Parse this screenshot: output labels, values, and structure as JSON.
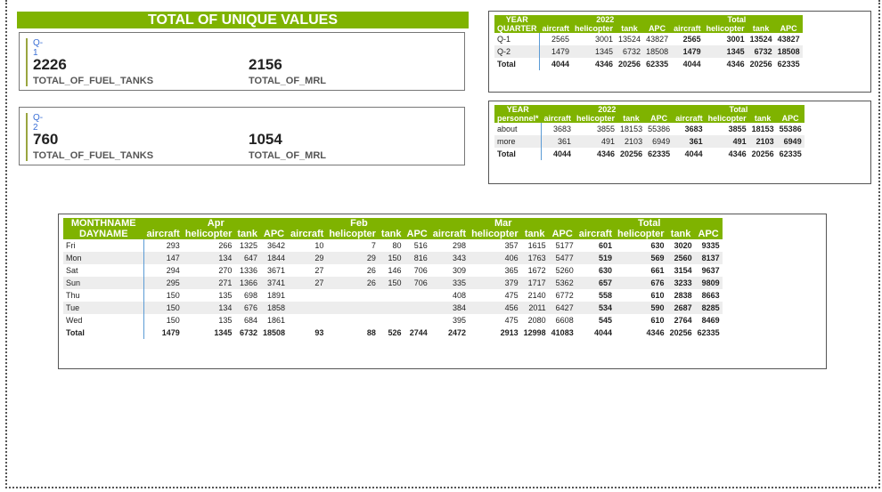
{
  "title": "TOTAL OF UNIQUE VALUES",
  "cards": [
    {
      "quarter": "Q-1",
      "fuel_value": "2226",
      "fuel_label": "TOTAL_OF_FUEL_TANKS",
      "mrl_value": "2156",
      "mrl_label": "TOTAL_OF_MRL"
    },
    {
      "quarter": "Q-2",
      "fuel_value": "760",
      "fuel_label": "TOTAL_OF_FUEL_TANKS",
      "mrl_value": "1054",
      "mrl_label": "TOTAL_OF_MRL"
    }
  ],
  "quarter_matrix": {
    "h_year": "YEAR",
    "h_2022": "2022",
    "h_total": "Total",
    "h_row": "QUARTER",
    "cols": [
      "aircraft",
      "helicopter",
      "tank",
      "APC",
      "aircraft",
      "helicopter",
      "tank",
      "APC"
    ],
    "rows": [
      {
        "label": "Q-1",
        "v": [
          "2565",
          "3001",
          "13524",
          "43827",
          "2565",
          "3001",
          "13524",
          "43827"
        ]
      },
      {
        "label": "Q-2",
        "v": [
          "1479",
          "1345",
          "6732",
          "18508",
          "1479",
          "1345",
          "6732",
          "18508"
        ]
      },
      {
        "label": "Total",
        "v": [
          "4044",
          "4346",
          "20256",
          "62335",
          "4044",
          "4346",
          "20256",
          "62335"
        ]
      }
    ]
  },
  "personnel_matrix": {
    "h_year": "YEAR",
    "h_2022": "2022",
    "h_total": "Total",
    "h_row": "personnel*",
    "cols": [
      "aircraft",
      "helicopter",
      "tank",
      "APC",
      "aircraft",
      "helicopter",
      "tank",
      "APC"
    ],
    "rows": [
      {
        "label": "about",
        "v": [
          "3683",
          "3855",
          "18153",
          "55386",
          "3683",
          "3855",
          "18153",
          "55386"
        ]
      },
      {
        "label": "more",
        "v": [
          "361",
          "491",
          "2103",
          "6949",
          "361",
          "491",
          "2103",
          "6949"
        ]
      },
      {
        "label": "Total",
        "v": [
          "4044",
          "4346",
          "20256",
          "62335",
          "4044",
          "4346",
          "20256",
          "62335"
        ]
      }
    ]
  },
  "month_matrix": {
    "h_month": "MONTHNAME",
    "h_day": "DAYNAME",
    "months": [
      "Apr",
      "Feb",
      "Mar",
      "Total"
    ],
    "cols": [
      "aircraft",
      "helicopter",
      "tank",
      "APC"
    ],
    "rows": [
      {
        "label": "Fri",
        "v": [
          "293",
          "266",
          "1325",
          "3642",
          "10",
          "7",
          "80",
          "516",
          "298",
          "357",
          "1615",
          "5177",
          "601",
          "630",
          "3020",
          "9335"
        ]
      },
      {
        "label": "Mon",
        "v": [
          "147",
          "134",
          "647",
          "1844",
          "29",
          "29",
          "150",
          "816",
          "343",
          "406",
          "1763",
          "5477",
          "519",
          "569",
          "2560",
          "8137"
        ]
      },
      {
        "label": "Sat",
        "v": [
          "294",
          "270",
          "1336",
          "3671",
          "27",
          "26",
          "146",
          "706",
          "309",
          "365",
          "1672",
          "5260",
          "630",
          "661",
          "3154",
          "9637"
        ]
      },
      {
        "label": "Sun",
        "v": [
          "295",
          "271",
          "1366",
          "3741",
          "27",
          "26",
          "150",
          "706",
          "335",
          "379",
          "1717",
          "5362",
          "657",
          "676",
          "3233",
          "9809"
        ]
      },
      {
        "label": "Thu",
        "v": [
          "150",
          "135",
          "698",
          "1891",
          "",
          "",
          "",
          "",
          "408",
          "475",
          "2140",
          "6772",
          "558",
          "610",
          "2838",
          "8663"
        ]
      },
      {
        "label": "Tue",
        "v": [
          "150",
          "134",
          "676",
          "1858",
          "",
          "",
          "",
          "",
          "384",
          "456",
          "2011",
          "6427",
          "534",
          "590",
          "2687",
          "8285"
        ]
      },
      {
        "label": "Wed",
        "v": [
          "150",
          "135",
          "684",
          "1861",
          "",
          "",
          "",
          "",
          "395",
          "475",
          "2080",
          "6608",
          "545",
          "610",
          "2764",
          "8469"
        ]
      },
      {
        "label": "Total",
        "v": [
          "1479",
          "1345",
          "6732",
          "18508",
          "93",
          "88",
          "526",
          "2744",
          "2472",
          "2913",
          "12998",
          "41083",
          "4044",
          "4346",
          "20256",
          "62335"
        ]
      }
    ]
  }
}
